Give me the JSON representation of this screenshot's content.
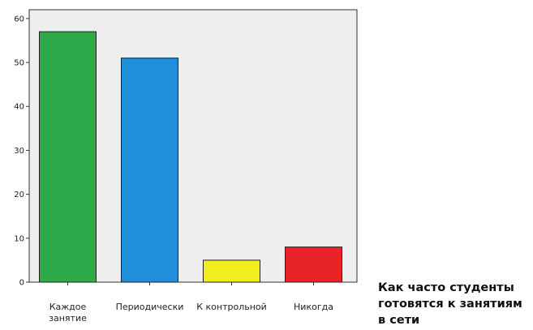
{
  "chart_data": {
    "type": "bar",
    "categories": [
      [
        "Каждое",
        "занятие"
      ],
      [
        "Периодически"
      ],
      [
        "К контрольной"
      ],
      [
        "Никогда"
      ]
    ],
    "values": [
      57,
      51,
      5,
      8
    ],
    "colors": [
      "#2eaa4a",
      "#1e8fd8",
      "#f2ee1e",
      "#e8242a"
    ],
    "ylim": [
      0,
      62
    ],
    "yticks": [
      0,
      10,
      20,
      30,
      40,
      50,
      60
    ],
    "plot_background": "#eeeeee",
    "grid": false,
    "legend": "none"
  },
  "caption": "Как часто студенты\nготовятся к занятиям\nв сети"
}
